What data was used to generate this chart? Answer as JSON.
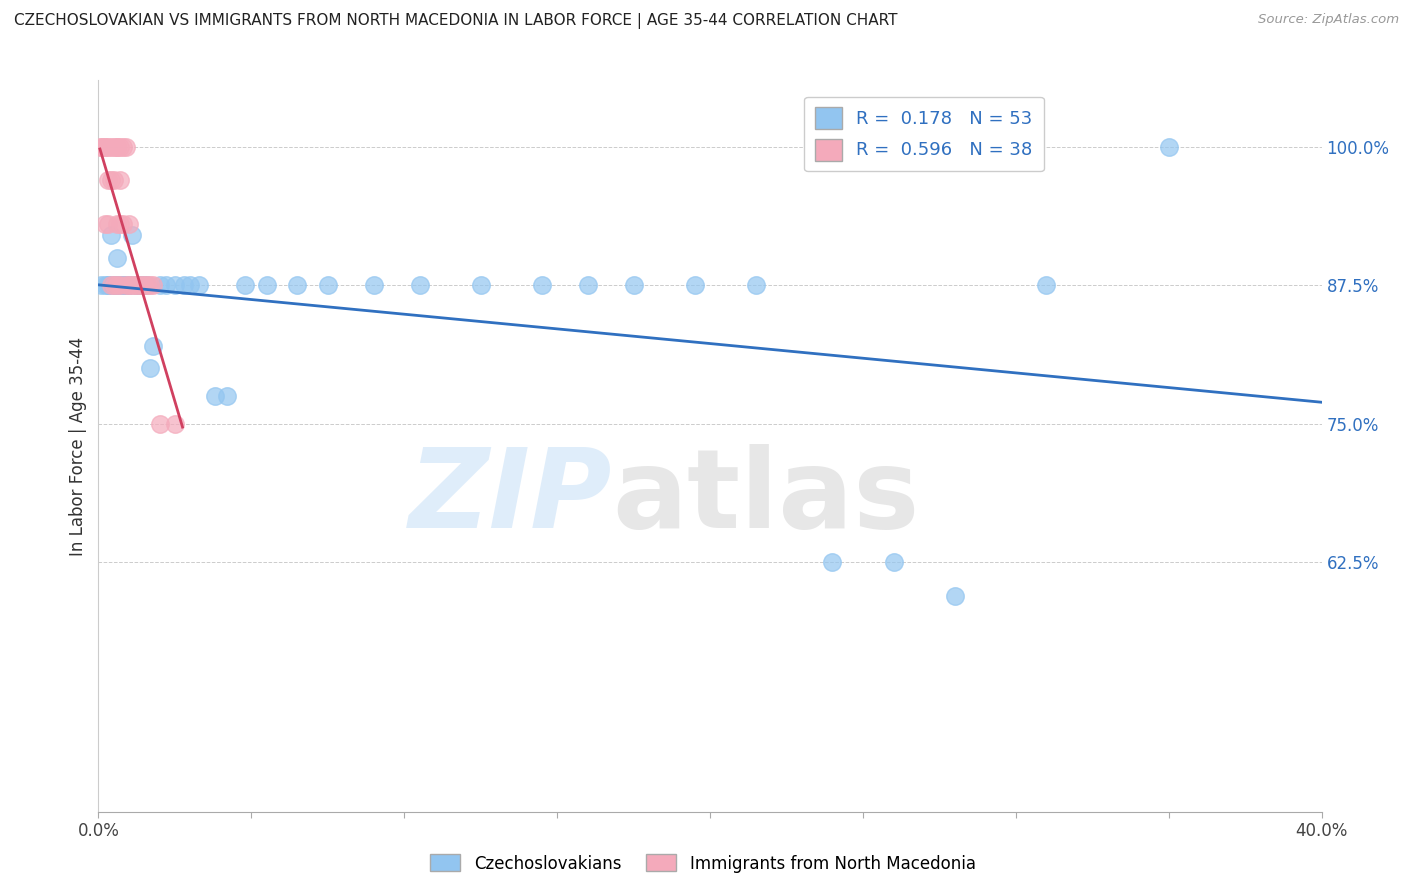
{
  "title": "CZECHOSLOVAKIAN VS IMMIGRANTS FROM NORTH MACEDONIA IN LABOR FORCE | AGE 35-44 CORRELATION CHART",
  "source": "Source: ZipAtlas.com",
  "ylabel": "In Labor Force | Age 35-44",
  "blue_R": 0.178,
  "blue_N": 53,
  "pink_R": 0.596,
  "pink_N": 38,
  "blue_color": "#92C5F0",
  "pink_color": "#F4AABB",
  "blue_line_color": "#3070C0",
  "pink_line_color": "#D04060",
  "xlim": [
    0.0,
    0.4
  ],
  "ylim": [
    0.4,
    1.06
  ],
  "yticks": [
    0.625,
    0.75,
    0.875,
    1.0
  ],
  "ytick_labels": [
    "62.5%",
    "75.0%",
    "87.5%",
    "100.0%"
  ],
  "xticks": [
    0.0,
    0.05,
    0.1,
    0.15,
    0.2,
    0.25,
    0.3,
    0.35,
    0.4
  ],
  "xtick_labels": [
    "0.0%",
    "",
    "",
    "",
    "",
    "",
    "",
    "",
    "40.0%"
  ],
  "blue_x": [
    0.001,
    0.002,
    0.003,
    0.003,
    0.004,
    0.004,
    0.005,
    0.005,
    0.006,
    0.006,
    0.006,
    0.007,
    0.007,
    0.007,
    0.008,
    0.008,
    0.009,
    0.009,
    0.01,
    0.01,
    0.011,
    0.012,
    0.013,
    0.014,
    0.015,
    0.016,
    0.017,
    0.018,
    0.02,
    0.022,
    0.025,
    0.028,
    0.03,
    0.033,
    0.038,
    0.042,
    0.048,
    0.055,
    0.065,
    0.075,
    0.09,
    0.105,
    0.125,
    0.145,
    0.16,
    0.175,
    0.195,
    0.215,
    0.24,
    0.26,
    0.28,
    0.31,
    0.35
  ],
  "blue_y": [
    0.875,
    0.875,
    0.875,
    0.875,
    0.875,
    0.92,
    0.875,
    0.875,
    0.875,
    0.875,
    0.9,
    0.875,
    0.875,
    0.875,
    0.875,
    0.875,
    0.875,
    0.875,
    0.875,
    0.875,
    0.92,
    0.875,
    0.875,
    0.875,
    0.875,
    0.875,
    0.8,
    0.82,
    0.875,
    0.875,
    0.875,
    0.875,
    0.875,
    0.875,
    0.775,
    0.775,
    0.875,
    0.875,
    0.875,
    0.875,
    0.875,
    0.875,
    0.875,
    0.875,
    0.875,
    0.875,
    0.875,
    0.875,
    0.625,
    0.625,
    0.595,
    0.875,
    1.0
  ],
  "pink_x": [
    0.001,
    0.001,
    0.002,
    0.002,
    0.002,
    0.003,
    0.003,
    0.003,
    0.004,
    0.004,
    0.004,
    0.005,
    0.005,
    0.005,
    0.006,
    0.006,
    0.006,
    0.006,
    0.007,
    0.007,
    0.007,
    0.007,
    0.008,
    0.008,
    0.009,
    0.009,
    0.01,
    0.01,
    0.011,
    0.012,
    0.013,
    0.014,
    0.015,
    0.016,
    0.017,
    0.018,
    0.02,
    0.025
  ],
  "pink_y": [
    1.0,
    1.0,
    1.0,
    1.0,
    0.93,
    1.0,
    0.97,
    0.93,
    1.0,
    0.97,
    0.875,
    1.0,
    0.97,
    0.875,
    1.0,
    1.0,
    0.93,
    0.875,
    1.0,
    0.97,
    0.93,
    0.875,
    1.0,
    0.93,
    1.0,
    0.875,
    0.93,
    0.875,
    0.875,
    0.875,
    0.875,
    0.875,
    0.875,
    0.875,
    0.875,
    0.875,
    0.75,
    0.75
  ]
}
